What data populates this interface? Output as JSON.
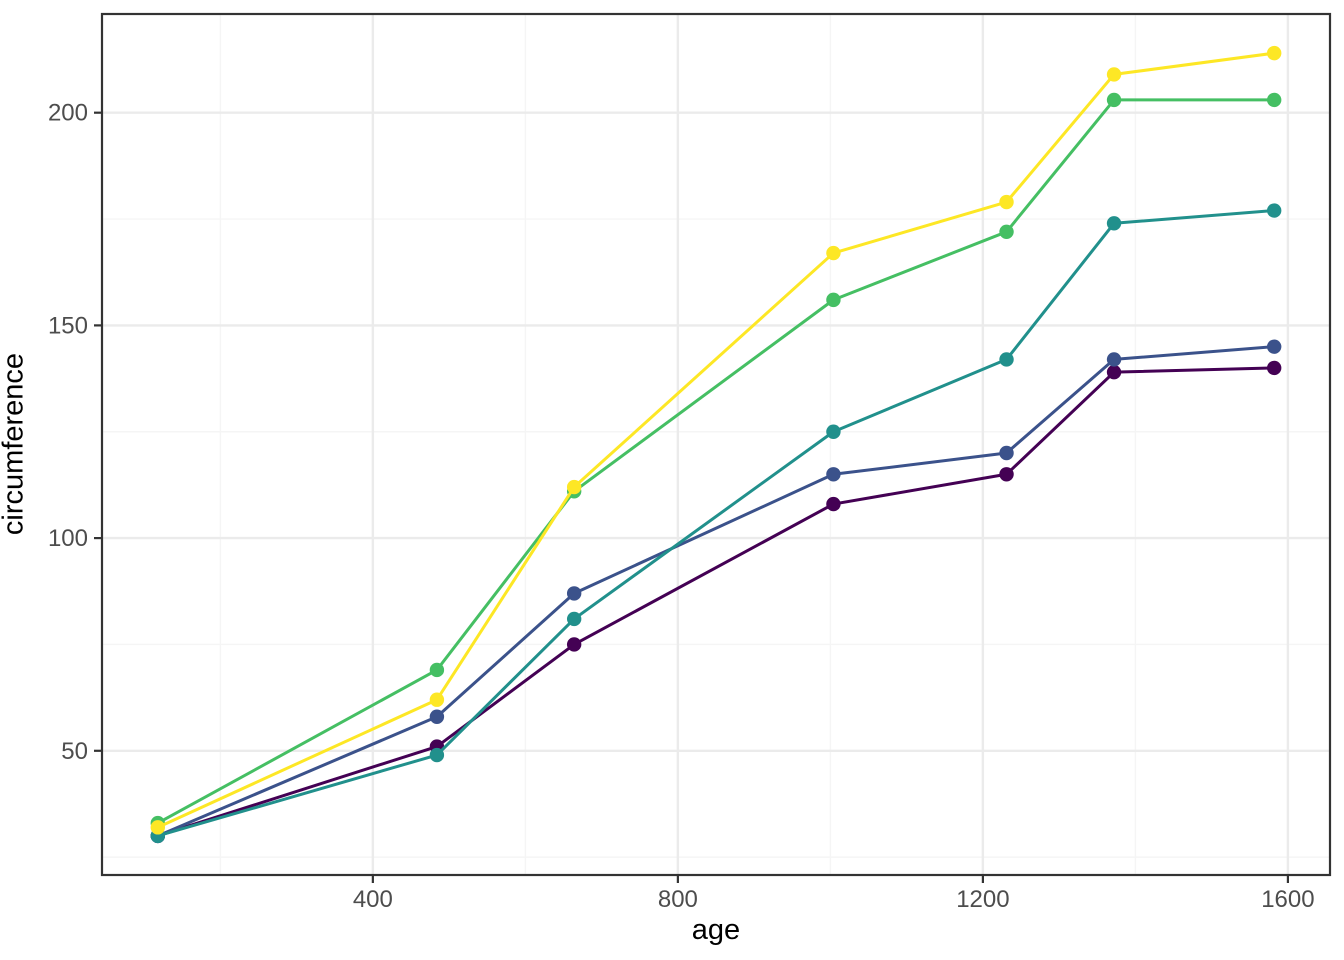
{
  "figure": {
    "background": "#FFFFFF"
  },
  "axes": {
    "x_title": "age",
    "y_title": "circumference"
  },
  "styles": {
    "panel_background": "#FFFFFF",
    "panel_border_color": "#333333",
    "grid_major_color": "#EBEBEB",
    "grid_minor_color": "#F5F5F5",
    "tick_mark_color": "#333333",
    "tick_label_color": "#4D4D4D",
    "axis_title_color": "#000000"
  },
  "chart_data": {
    "type": "line",
    "title": "",
    "xlabel": "age",
    "ylabel": "circumference",
    "grid": true,
    "legend_position": "none",
    "xlim": [
      44.8,
      1655.2
    ],
    "ylim": [
      20.8,
      223.2
    ],
    "x_ticks": [
      400,
      800,
      1200,
      1600
    ],
    "y_ticks": [
      50,
      100,
      150,
      200
    ],
    "x_minor_gridlines": [
      200,
      600,
      1000,
      1400
    ],
    "y_minor_gridlines": [
      25,
      75,
      125,
      175
    ],
    "x": [
      118,
      484,
      664,
      1004,
      1231,
      1372,
      1582
    ],
    "series": [
      {
        "name": "purple-line",
        "color": "#440154",
        "values": [
          30,
          51,
          75,
          108,
          115,
          139,
          140
        ]
      },
      {
        "name": "blue-line",
        "color": "#3B528B",
        "values": [
          30,
          58,
          87,
          115,
          120,
          142,
          145
        ]
      },
      {
        "name": "teal-line",
        "color": "#21908C",
        "values": [
          30,
          49,
          81,
          125,
          142,
          174,
          177
        ]
      },
      {
        "name": "green-line",
        "color": "#45BF63",
        "values": [
          33,
          69,
          111,
          156,
          172,
          203,
          203
        ]
      },
      {
        "name": "yellow-line",
        "color": "#FDE725",
        "values": [
          32,
          62,
          112,
          167,
          179,
          209,
          214
        ]
      }
    ],
    "marker": "filled-circle",
    "marker_radius": 7.2,
    "line_width": 3
  }
}
